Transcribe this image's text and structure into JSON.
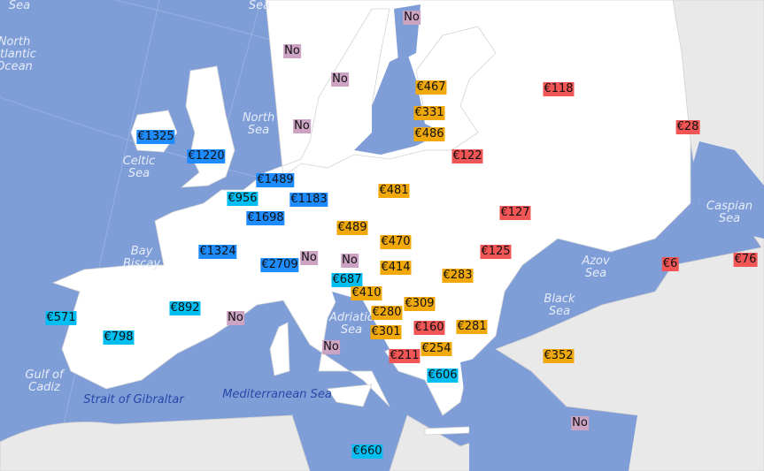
{
  "colors": {
    "sea": "#7f9ed8",
    "eu_land": "#ffffff",
    "other_land": "#e9e9e9",
    "blue": "#1e8cff",
    "cyan": "#00bdf2",
    "orange": "#f0a80a",
    "red": "#f25555",
    "pink": "#cca3c3"
  },
  "sea_labels": {
    "top_left": "Sea",
    "top_mid": "Sea",
    "north_atlantic": "North\nAtlantic\nOcean",
    "north_sea": "North\nSea",
    "celtic": "Celtic\nSea",
    "biscay": "Bay\nBiscay",
    "adriatic": "Adriatic\nSea",
    "azov": "Azov\nSea",
    "black": "Black\nSea",
    "caspian": "Caspian\nSea",
    "cadiz": "Gulf of\nCadiz",
    "gibraltar": "Strait of Gibraltar",
    "mediterranean": "Mediterranean Sea"
  },
  "labels": [
    {
      "text": "€1325",
      "color": "blue"
    },
    {
      "text": "€1220",
      "color": "blue"
    },
    {
      "text": "€1489",
      "color": "blue"
    },
    {
      "text": "€956",
      "color": "cyan"
    },
    {
      "text": "€1183",
      "color": "blue"
    },
    {
      "text": "€1698",
      "color": "blue"
    },
    {
      "text": "€1324",
      "color": "blue"
    },
    {
      "text": "€2709",
      "color": "blue"
    },
    {
      "text": "No",
      "color": "pink"
    },
    {
      "text": "No",
      "color": "pink"
    },
    {
      "text": "€687",
      "color": "cyan"
    },
    {
      "text": "€410",
      "color": "orange"
    },
    {
      "text": "€892",
      "color": "cyan"
    },
    {
      "text": "€571",
      "color": "cyan"
    },
    {
      "text": "€798",
      "color": "cyan"
    },
    {
      "text": "No",
      "color": "pink"
    },
    {
      "text": "€489",
      "color": "orange"
    },
    {
      "text": "€470",
      "color": "orange"
    },
    {
      "text": "€414",
      "color": "orange"
    },
    {
      "text": "€481",
      "color": "orange"
    },
    {
      "text": "€283",
      "color": "orange"
    },
    {
      "text": "€309",
      "color": "orange"
    },
    {
      "text": "€280",
      "color": "orange"
    },
    {
      "text": "€301",
      "color": "orange"
    },
    {
      "text": "€160",
      "color": "red"
    },
    {
      "text": "€281",
      "color": "orange"
    },
    {
      "text": "€254",
      "color": "orange"
    },
    {
      "text": "€211",
      "color": "red"
    },
    {
      "text": "No",
      "color": "pink"
    },
    {
      "text": "€606",
      "color": "cyan"
    },
    {
      "text": "€660",
      "color": "cyan"
    },
    {
      "text": "€352",
      "color": "orange"
    },
    {
      "text": "No",
      "color": "pink"
    },
    {
      "text": "€125",
      "color": "red"
    },
    {
      "text": "€127",
      "color": "red"
    },
    {
      "text": "€122",
      "color": "red"
    },
    {
      "text": "€467",
      "color": "orange"
    },
    {
      "text": "€331",
      "color": "orange"
    },
    {
      "text": "€486",
      "color": "orange"
    },
    {
      "text": "€118",
      "color": "red"
    },
    {
      "text": "€28",
      "color": "red"
    },
    {
      "text": "€6",
      "color": "red"
    },
    {
      "text": "€76",
      "color": "red"
    },
    {
      "text": "No",
      "color": "pink"
    },
    {
      "text": "No",
      "color": "pink"
    },
    {
      "text": "No",
      "color": "pink"
    },
    {
      "text": "No",
      "color": "pink"
    }
  ]
}
